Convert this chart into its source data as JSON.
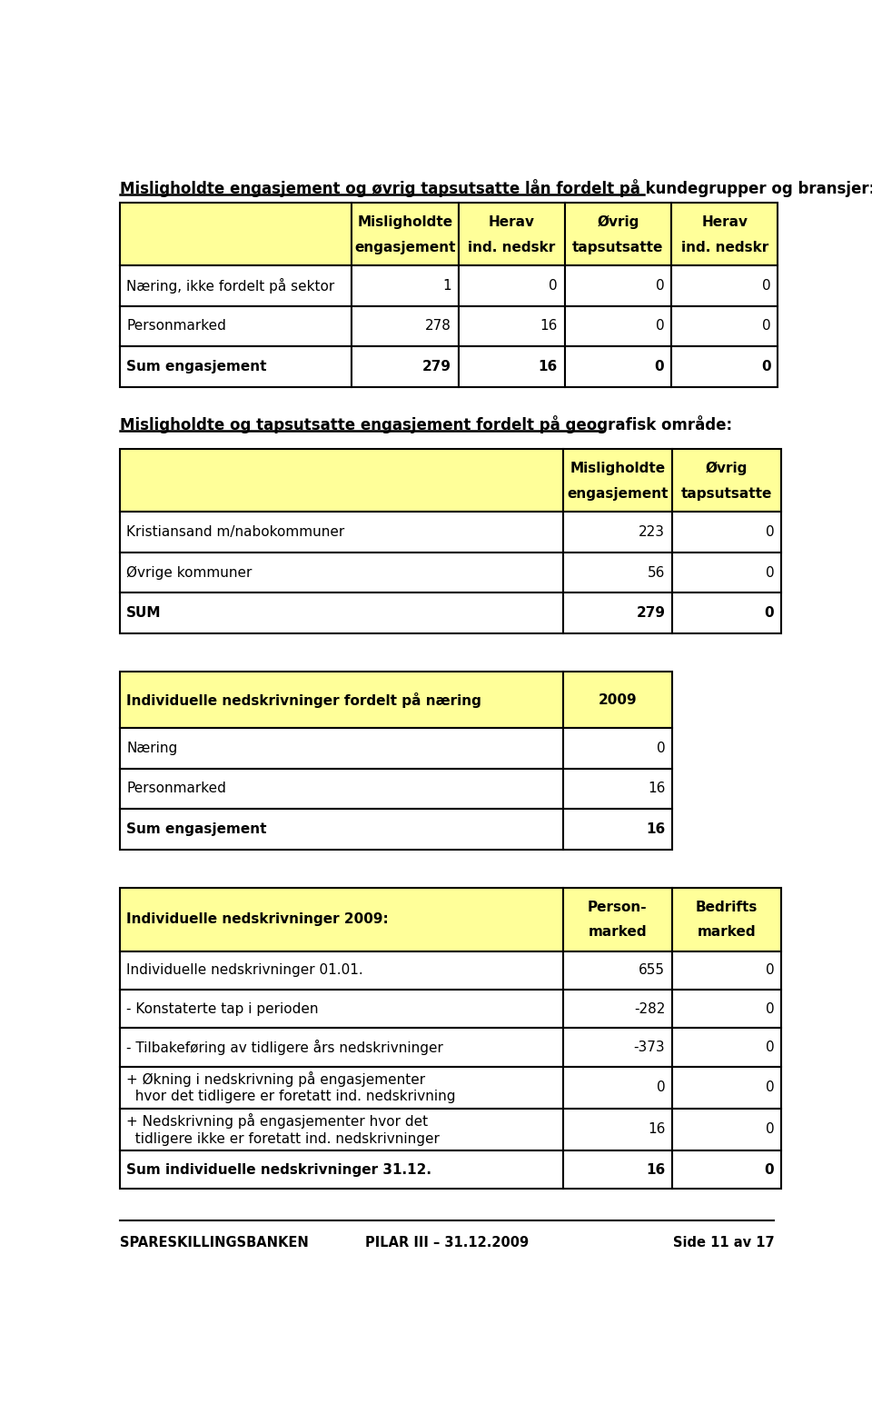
{
  "bg_color": "#ffffff",
  "yellow": "#FFFF99",
  "title1": "Misligholdte engasjement og øvrig tapsutsatte lån fordelt på kundegrupper og bransjer:",
  "table1_headers": [
    [
      "Misligholdte",
      "Herav",
      "Øvrig",
      "Herav"
    ],
    [
      "engasjement",
      "ind. nedskr",
      "tapsutsatte",
      "ind. nedskr"
    ]
  ],
  "table1_rows": [
    [
      "Næring, ikke fordelt på sektor",
      "1",
      "0",
      "0",
      "0"
    ],
    [
      "Personmarked",
      "278",
      "16",
      "0",
      "0"
    ],
    [
      "Sum engasjement",
      "279",
      "16",
      "0",
      "0"
    ]
  ],
  "title2": "Misligholdte og tapsutsatte engasjement fordelt på geografisk område:",
  "table2_headers": [
    [
      "Misligholdte",
      "Øvrig"
    ],
    [
      "engasjement",
      "tapsutsatte"
    ]
  ],
  "table2_rows": [
    [
      "Kristiansand m/nabokommuner",
      "223",
      "0"
    ],
    [
      "Øvrige kommuner",
      "56",
      "0"
    ],
    [
      "SUM",
      "279",
      "0"
    ]
  ],
  "title3_col1": "Individuelle nedskrivninger fordelt på næring",
  "title3_col2": "2009",
  "table3_rows": [
    [
      "Næring",
      "0"
    ],
    [
      "Personmarked",
      "16"
    ],
    [
      "Sum engasjement",
      "16"
    ]
  ],
  "title4_col1": "Individuelle nedskrivninger 2009:",
  "title4_col2a": "Person-",
  "title4_col2b": "marked",
  "title4_col3a": "Bedrifts",
  "title4_col3b": "marked",
  "table4_rows": [
    [
      "Individuelle nedskrivninger 01.01.",
      "655",
      "0",
      false
    ],
    [
      "- Konstaterte tap i perioden",
      "-282",
      "0",
      false
    ],
    [
      "- Tilbakeføring av tidligere års nedskrivninger",
      "-373",
      "0",
      false
    ],
    [
      "+ Økning i nedskrivning på engasjementer",
      "0",
      "0",
      false
    ],
    [
      "  hvor det tidligere er foretatt ind. nedskrivning",
      "",
      "",
      false
    ],
    [
      "+ Nedskrivning på engasjementer hvor det",
      "16",
      "0",
      false
    ],
    [
      "  tidligere ikke er foretatt ind. nedskrivninger",
      "",
      "",
      false
    ],
    [
      "Sum individuelle nedskrivninger 31.12.",
      "16",
      "0",
      true
    ]
  ],
  "footer_left": "SPARESKILLINGSBANKEN",
  "footer_mid": "PILAR III – 31.12.2009",
  "footer_right": "Side 11 av 17"
}
